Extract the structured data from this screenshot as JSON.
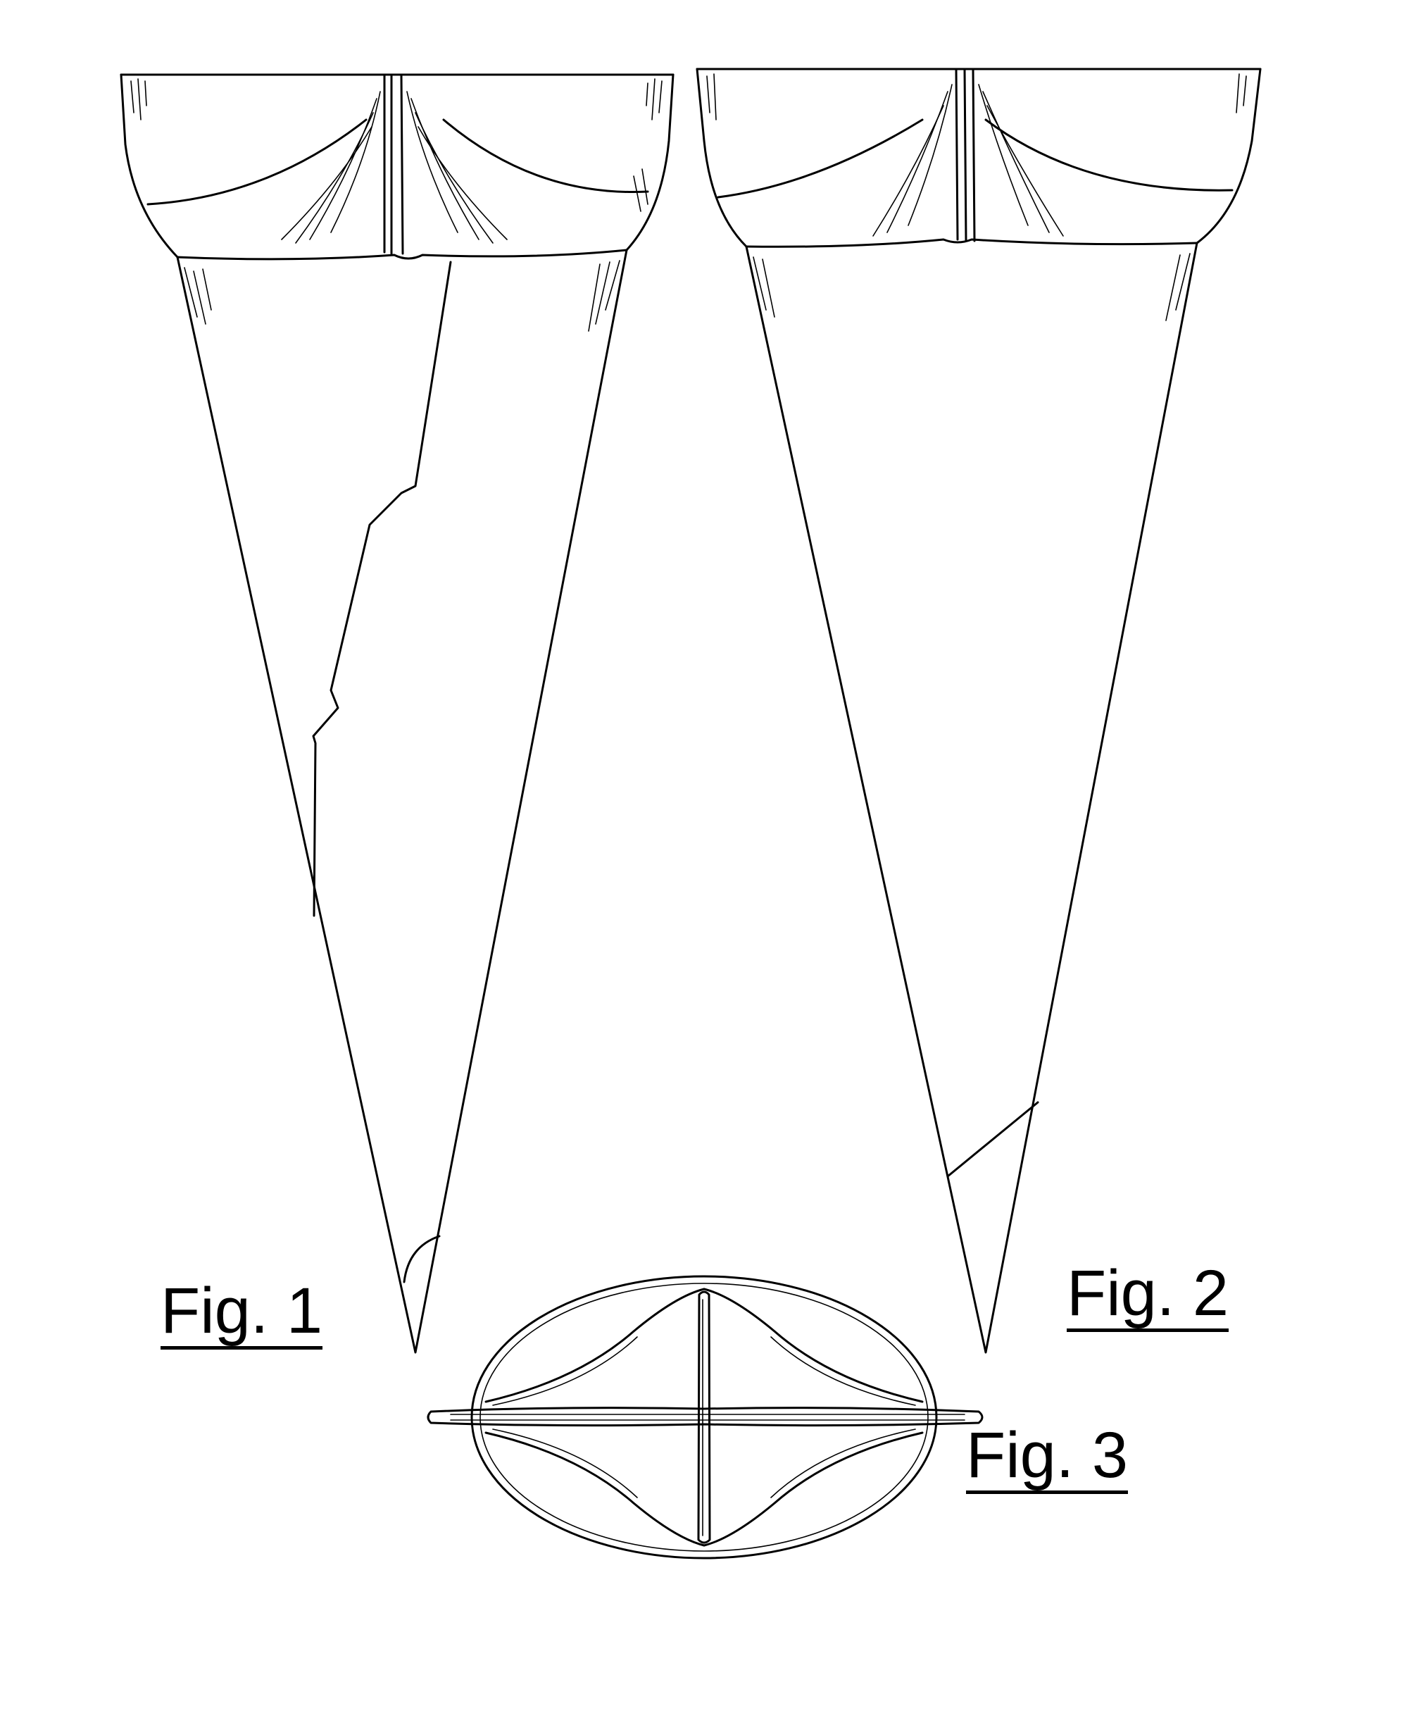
{
  "figures": [
    {
      "id": "fig1",
      "label": "Fig. 1"
    },
    {
      "id": "fig2",
      "label": "Fig. 2"
    },
    {
      "id": "fig3",
      "label": "Fig. 3"
    }
  ],
  "colors": {
    "ink": "#000000",
    "paper": "#ffffff"
  }
}
